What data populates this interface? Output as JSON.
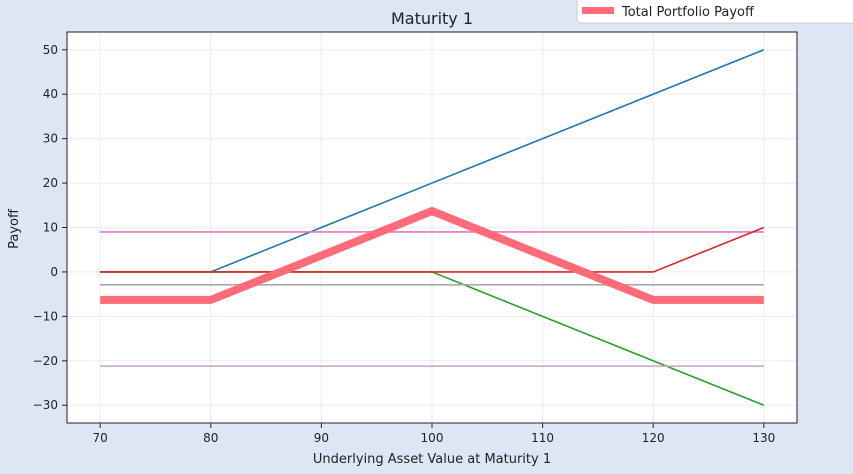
{
  "chart_data": {
    "type": "line",
    "title": "Maturity 1",
    "xlabel": "Underlying Asset Value at Maturity 1",
    "ylabel": "Payoff",
    "xlim": [
      67,
      133
    ],
    "ylim": [
      -34,
      54
    ],
    "xticks": [
      70,
      80,
      90,
      100,
      110,
      120,
      130
    ],
    "yticks": [
      -30,
      -20,
      -10,
      0,
      10,
      20,
      30,
      40,
      50
    ],
    "grid": true,
    "legend_placement": "top-right",
    "series": [
      {
        "color": "#1f77b4",
        "x": [
          70,
          80,
          130
        ],
        "y": [
          0,
          0,
          50
        ]
      },
      {
        "color": "#2ca02c",
        "x": [
          70,
          100,
          130
        ],
        "y": [
          0,
          0,
          -30
        ]
      },
      {
        "color": "#e377c2",
        "x": [
          70,
          130
        ],
        "y": [
          9,
          9
        ]
      },
      {
        "color": "#c8a2c8",
        "x": [
          70,
          130
        ],
        "y": [
          -21.2,
          -21.2
        ]
      },
      {
        "color": "#aaaaaa",
        "x": [
          70,
          130
        ],
        "y": [
          -2.9,
          -2.9
        ]
      },
      {
        "color": "#d62728",
        "x": [
          70,
          120,
          130
        ],
        "y": [
          0,
          0,
          10
        ]
      },
      {
        "name": "Total Portfolio Payoff",
        "color": "#ff6b78",
        "x": [
          70,
          80,
          100,
          120,
          130
        ],
        "y": [
          -6.3,
          -6.3,
          13.7,
          -6.3,
          -6.3
        ],
        "bold": true
      }
    ]
  }
}
